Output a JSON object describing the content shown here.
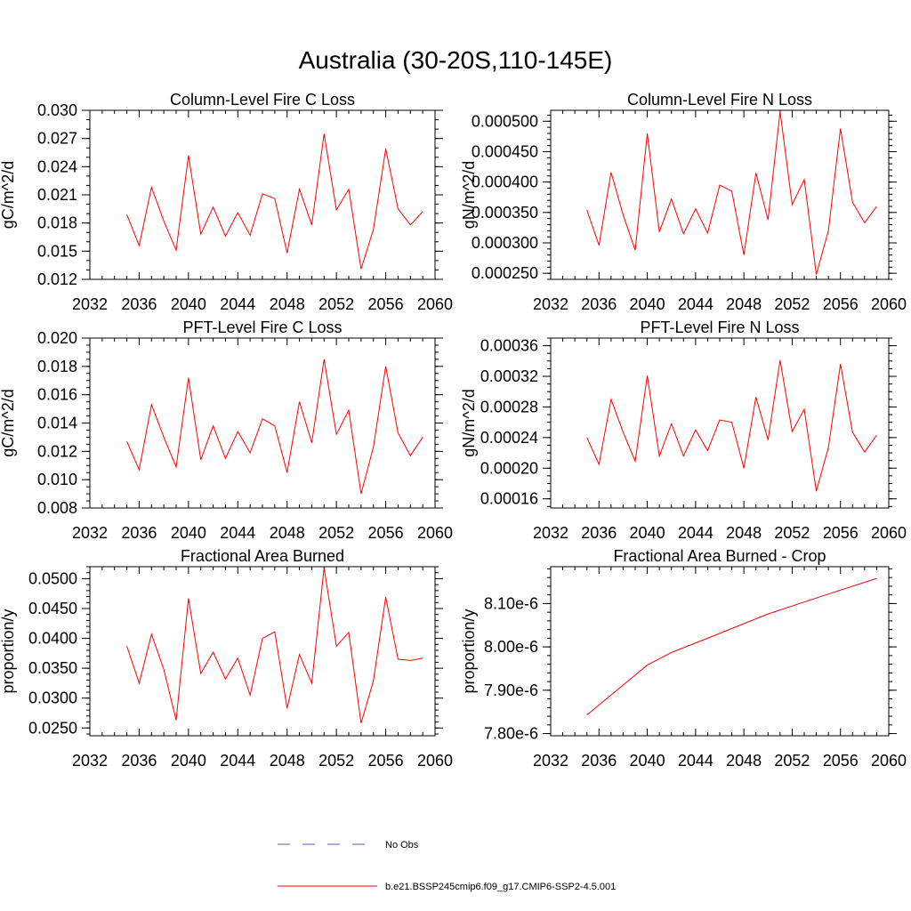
{
  "figure": {
    "title": "Australia (30-20S,110-145E)"
  },
  "legend": {
    "items": [
      {
        "label": "No Obs",
        "style": "dashed",
        "color": "#5a5ab4"
      },
      {
        "label": "b.e21.BSSP245cmip6.f09_g17.CMIP6-SSP2-4.5.001",
        "style": "solid",
        "color": "#ff0000"
      }
    ]
  },
  "chart_data": [
    {
      "type": "line",
      "title": "Column-Level Fire C Loss",
      "ylabel": "gC/m^2/d",
      "xlim": [
        2032,
        2060
      ],
      "ylim": [
        0.012,
        0.03
      ],
      "xticks": [
        2032,
        2036,
        2040,
        2044,
        2048,
        2052,
        2056,
        2060
      ],
      "xtick_labels": [
        "2032",
        "2036",
        "2040",
        "2044",
        "2048",
        "2052",
        "2056",
        "2060"
      ],
      "yticks": [
        0.012,
        0.015,
        0.018,
        0.021,
        0.024,
        0.027,
        0.03
      ],
      "ytick_labels": [
        "0.012",
        "0.015",
        "0.018",
        "0.021",
        "0.024",
        "0.027",
        "0.030"
      ],
      "yminor_step": 0.001,
      "series": [
        {
          "color": "#ff0000",
          "x": [
            2035,
            2036,
            2037,
            2038,
            2039,
            2040,
            2041,
            2042,
            2043,
            2044,
            2045,
            2046,
            2047,
            2048,
            2049,
            2050,
            2051,
            2052,
            2053,
            2054,
            2055,
            2056,
            2057,
            2058,
            2059
          ],
          "y": [
            0.0189,
            0.0156,
            0.0218,
            0.0182,
            0.0151,
            0.0252,
            0.0168,
            0.0197,
            0.0166,
            0.0191,
            0.0167,
            0.0211,
            0.0206,
            0.0148,
            0.0216,
            0.0178,
            0.0275,
            0.0194,
            0.0216,
            0.0131,
            0.0173,
            0.0259,
            0.0195,
            0.0178,
            0.0192
          ]
        }
      ]
    },
    {
      "type": "line",
      "title": "Column-Level Fire N Loss",
      "ylabel": "gN/m^2/d",
      "xlim": [
        2032,
        2060
      ],
      "ylim": [
        0.00024,
        0.000518
      ],
      "xticks": [
        2032,
        2036,
        2040,
        2044,
        2048,
        2052,
        2056,
        2060
      ],
      "xtick_labels": [
        "2032",
        "2036",
        "2040",
        "2044",
        "2048",
        "2052",
        "2056",
        "2060"
      ],
      "yticks": [
        0.00025,
        0.0003,
        0.00035,
        0.0004,
        0.00045,
        0.0005
      ],
      "ytick_labels": [
        "0.000250",
        "0.000300",
        "0.000350",
        "0.000400",
        "0.000450",
        "0.000500"
      ],
      "yminor_step": 1e-05,
      "series": [
        {
          "color": "#ff0000",
          "x": [
            2035,
            2036,
            2037,
            2038,
            2039,
            2040,
            2041,
            2042,
            2043,
            2044,
            2045,
            2046,
            2047,
            2048,
            2049,
            2050,
            2051,
            2052,
            2053,
            2054,
            2055,
            2056,
            2057,
            2058,
            2059
          ],
          "y": [
            0.000354,
            0.000296,
            0.000416,
            0.000346,
            0.000288,
            0.00048,
            0.000318,
            0.000372,
            0.000315,
            0.000356,
            0.000316,
            0.000395,
            0.000385,
            0.00028,
            0.000415,
            0.000338,
            0.000516,
            0.000363,
            0.000404,
            0.000248,
            0.00032,
            0.000488,
            0.000367,
            0.000333,
            0.00036
          ]
        }
      ]
    },
    {
      "type": "line",
      "title": "PFT-Level Fire C Loss",
      "ylabel": "gC/m^2/d",
      "xlim": [
        2032,
        2060
      ],
      "ylim": [
        0.008,
        0.02
      ],
      "xticks": [
        2032,
        2036,
        2040,
        2044,
        2048,
        2052,
        2056,
        2060
      ],
      "xtick_labels": [
        "2032",
        "2036",
        "2040",
        "2044",
        "2048",
        "2052",
        "2056",
        "2060"
      ],
      "yticks": [
        0.008,
        0.01,
        0.012,
        0.014,
        0.016,
        0.018,
        0.02
      ],
      "ytick_labels": [
        "0.008",
        "0.010",
        "0.012",
        "0.014",
        "0.016",
        "0.018",
        "0.020"
      ],
      "yminor_step": 0.0005,
      "series": [
        {
          "color": "#ff0000",
          "x": [
            2035,
            2036,
            2037,
            2038,
            2039,
            2040,
            2041,
            2042,
            2043,
            2044,
            2045,
            2046,
            2047,
            2048,
            2049,
            2050,
            2051,
            2052,
            2053,
            2054,
            2055,
            2056,
            2057,
            2058,
            2059
          ],
          "y": [
            0.0127,
            0.0107,
            0.0153,
            0.013,
            0.0109,
            0.0172,
            0.0114,
            0.0138,
            0.0115,
            0.0134,
            0.0119,
            0.0143,
            0.0138,
            0.0105,
            0.0155,
            0.0126,
            0.0185,
            0.0132,
            0.0149,
            0.009,
            0.0123,
            0.018,
            0.0133,
            0.0117,
            0.013
          ]
        }
      ]
    },
    {
      "type": "line",
      "title": "PFT-Level Fire N Loss",
      "ylabel": "gN/m^2/d",
      "xlim": [
        2032,
        2060
      ],
      "ylim": [
        0.000148,
        0.00037
      ],
      "xticks": [
        2032,
        2036,
        2040,
        2044,
        2048,
        2052,
        2056,
        2060
      ],
      "xtick_labels": [
        "2032",
        "2036",
        "2040",
        "2044",
        "2048",
        "2052",
        "2056",
        "2060"
      ],
      "yticks": [
        0.00016,
        0.0002,
        0.00024,
        0.00028,
        0.00032,
        0.00036
      ],
      "ytick_labels": [
        "0.00016",
        "0.00020",
        "0.00024",
        "0.00028",
        "0.00032",
        "0.00036"
      ],
      "yminor_step": 1e-05,
      "series": [
        {
          "color": "#ff0000",
          "x": [
            2035,
            2036,
            2037,
            2038,
            2039,
            2040,
            2041,
            2042,
            2043,
            2044,
            2045,
            2046,
            2047,
            2048,
            2049,
            2050,
            2051,
            2052,
            2053,
            2054,
            2055,
            2056,
            2057,
            2058,
            2059
          ],
          "y": [
            0.00024,
            0.000205,
            0.00029,
            0.000247,
            0.000209,
            0.000321,
            0.000216,
            0.000258,
            0.000216,
            0.00025,
            0.000223,
            0.000263,
            0.00026,
            0.0002,
            0.000293,
            0.000237,
            0.000341,
            0.000248,
            0.000277,
            0.00017,
            0.000227,
            0.000336,
            0.000247,
            0.000221,
            0.000243
          ]
        }
      ]
    },
    {
      "type": "line",
      "title": "Fractional Area Burned",
      "ylabel": "proportion/y",
      "xlim": [
        2032,
        2060
      ],
      "ylim": [
        0.0237,
        0.052
      ],
      "xticks": [
        2032,
        2036,
        2040,
        2044,
        2048,
        2052,
        2056,
        2060
      ],
      "xtick_labels": [
        "2032",
        "2036",
        "2040",
        "2044",
        "2048",
        "2052",
        "2056",
        "2060"
      ],
      "yticks": [
        0.025,
        0.03,
        0.035,
        0.04,
        0.045,
        0.05
      ],
      "ytick_labels": [
        "0.0250",
        "0.0300",
        "0.0350",
        "0.0400",
        "0.0450",
        "0.0500"
      ],
      "yminor_step": 0.001,
      "series": [
        {
          "color": "#ff0000",
          "x": [
            2035,
            2036,
            2037,
            2038,
            2039,
            2040,
            2041,
            2042,
            2043,
            2044,
            2045,
            2046,
            2047,
            2048,
            2049,
            2050,
            2051,
            2052,
            2053,
            2054,
            2055,
            2056,
            2057,
            2058,
            2059
          ],
          "y": [
            0.0387,
            0.0325,
            0.0407,
            0.0348,
            0.0263,
            0.0467,
            0.0341,
            0.0377,
            0.0332,
            0.0367,
            0.0305,
            0.04,
            0.0411,
            0.0283,
            0.0373,
            0.0325,
            0.0518,
            0.0387,
            0.041,
            0.0258,
            0.0329,
            0.0469,
            0.0365,
            0.0363,
            0.0367
          ]
        }
      ]
    },
    {
      "type": "line",
      "title": "Fractional Area Burned - Crop",
      "ylabel": "proportion/y",
      "xlim": [
        2032,
        2060
      ],
      "ylim": [
        7.795e-06,
        8.185e-06
      ],
      "xticks": [
        2032,
        2036,
        2040,
        2044,
        2048,
        2052,
        2056,
        2060
      ],
      "xtick_labels": [
        "2032",
        "2036",
        "2040",
        "2044",
        "2048",
        "2052",
        "2056",
        "2060"
      ],
      "yticks": [
        7.8e-06,
        7.9e-06,
        8e-06,
        8.1e-06
      ],
      "ytick_labels": [
        "7.80e-6",
        "7.90e-6",
        "8.00e-6",
        "8.10e-6"
      ],
      "yminor_step": 2e-08,
      "series": [
        {
          "color": "#ff0000",
          "x": [
            2035,
            2040,
            2042,
            2045,
            2050,
            2055,
            2059
          ],
          "y": [
            7.843e-06,
            7.958e-06,
            7.987e-06,
            8.02e-06,
            8.076e-06,
            8.122e-06,
            8.158e-06
          ]
        }
      ]
    }
  ]
}
